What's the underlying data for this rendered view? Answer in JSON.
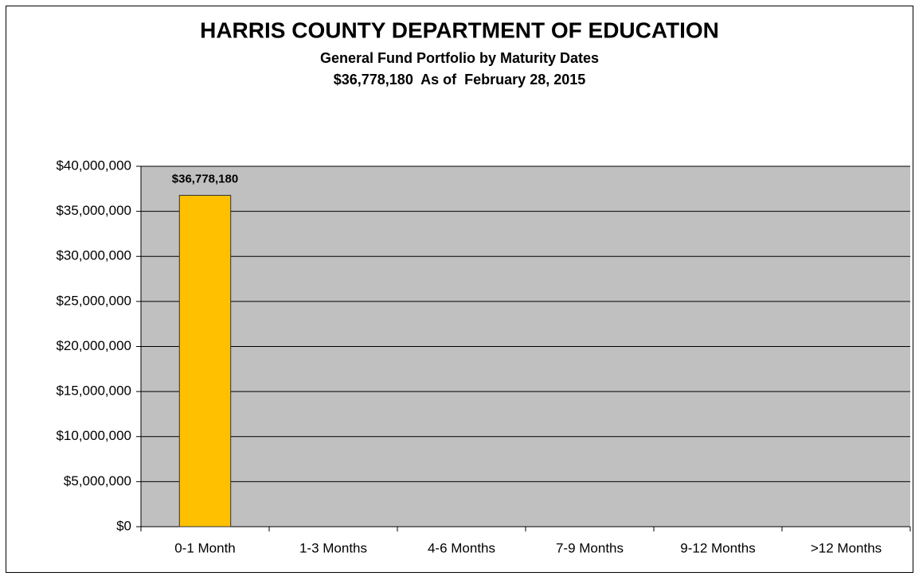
{
  "chart_data": {
    "type": "bar",
    "title": "HARRIS COUNTY DEPARTMENT OF EDUCATION",
    "subtitle": "General Fund Portfolio by Maturity Dates",
    "subtitle2": "$36,778,180  As of  February 28, 2015",
    "categories": [
      "0-1 Month",
      "1-3 Months",
      "4-6 Months",
      "7-9 Months",
      "9-12 Months",
      ">12 Months"
    ],
    "values": [
      36778180,
      0,
      0,
      0,
      0,
      0
    ],
    "value_labels": [
      "$36,778,180",
      null,
      null,
      null,
      null,
      null
    ],
    "color": "#ffc000",
    "ylim": [
      0,
      40000000
    ],
    "yticks": [
      {
        "value": 0,
        "label": "$0"
      },
      {
        "value": 5000000,
        "label": "$5,000,000"
      },
      {
        "value": 10000000,
        "label": "$10,000,000"
      },
      {
        "value": 15000000,
        "label": "$15,000,000"
      },
      {
        "value": 20000000,
        "label": "$20,000,000"
      },
      {
        "value": 25000000,
        "label": "$25,000,000"
      },
      {
        "value": 30000000,
        "label": "$30,000,000"
      },
      {
        "value": 35000000,
        "label": "$35,000,000"
      },
      {
        "value": 40000000,
        "label": "$40,000,000"
      }
    ],
    "grid": true
  }
}
